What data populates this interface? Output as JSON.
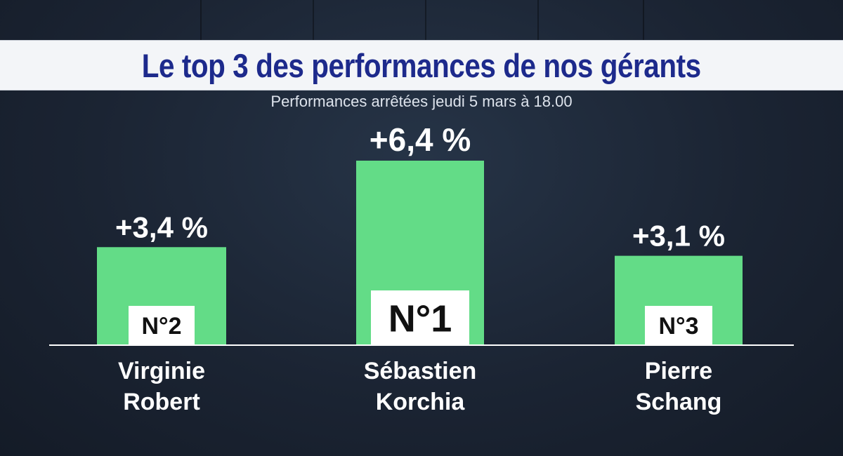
{
  "title": "Le top 3 des performances de nos gérants",
  "subtitle": "Performances arrêtées jeudi 5 mars à 18.00",
  "colors": {
    "bar": "#63dc87",
    "badge_bg": "#ffffff",
    "text": "#ffffff",
    "title": "#1d2a8c",
    "baseline": "#ffffff"
  },
  "chart_data": {
    "type": "bar",
    "categories": [
      "Virginie Robert",
      "Sébastien Korchia",
      "Pierre Schang"
    ],
    "values": [
      3.4,
      6.4,
      3.1
    ],
    "value_labels": [
      "+3,4 %",
      "+6,4 %",
      "+3,1 %"
    ],
    "ranks": [
      "N°2",
      "N°1",
      "N°3"
    ],
    "names": [
      {
        "first": "Virginie",
        "last": "Robert"
      },
      {
        "first": "Sébastien",
        "last": "Korchia"
      },
      {
        "first": "Pierre",
        "last": "Schang"
      }
    ],
    "ylim": [
      0,
      6.4
    ],
    "grid": false
  }
}
